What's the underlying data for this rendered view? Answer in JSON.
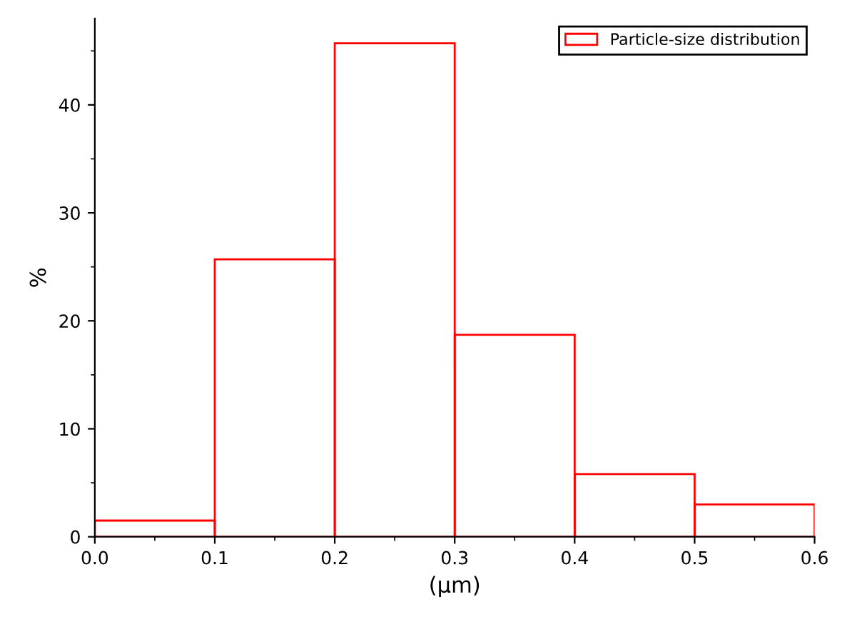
{
  "chart_data": {
    "type": "histogram",
    "xlabel": "(µm)",
    "ylabel": "%",
    "bins": [
      0.0,
      0.1,
      0.2,
      0.3,
      0.4,
      0.5,
      0.6
    ],
    "series": [
      {
        "name": "Particle-size distribution",
        "color": "#ff0000",
        "values": [
          1.5,
          25.7,
          45.7,
          18.7,
          5.8,
          3.0
        ]
      }
    ],
    "xlim": [
      0.0,
      0.6
    ],
    "xticks": [
      {
        "value": 0.0,
        "label": "0.0"
      },
      0.1,
      0.2,
      0.3,
      0.4,
      0.5,
      0.6
    ],
    "ylim": [
      0,
      48
    ],
    "yticks": [
      0,
      10,
      20,
      30,
      40
    ],
    "legend": "top right",
    "grid": false
  }
}
